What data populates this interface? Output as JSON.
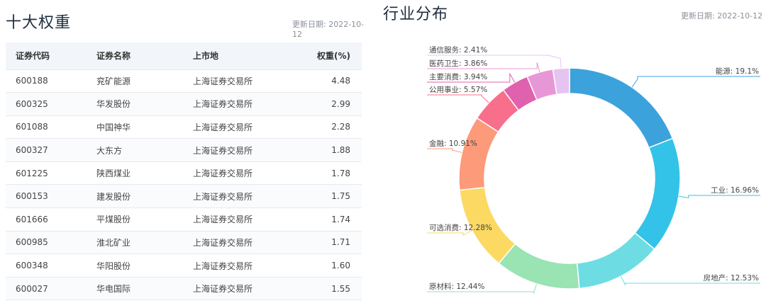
{
  "top10": {
    "title": "十大权重",
    "update_text": "更新日期: 2022-10-12",
    "columns": [
      "证券代码",
      "证券名称",
      "上市地",
      "权重(%)"
    ],
    "rows": [
      [
        "600188",
        "兖矿能源",
        "上海证券交易所",
        "4.48"
      ],
      [
        "600325",
        "华发股份",
        "上海证券交易所",
        "2.99"
      ],
      [
        "601088",
        "中国神华",
        "上海证券交易所",
        "2.28"
      ],
      [
        "600327",
        "大东方",
        "上海证券交易所",
        "1.88"
      ],
      [
        "601225",
        "陕西煤业",
        "上海证券交易所",
        "1.78"
      ],
      [
        "600153",
        "建发股份",
        "上海证券交易所",
        "1.75"
      ],
      [
        "601666",
        "平煤股份",
        "上海证券交易所",
        "1.74"
      ],
      [
        "600985",
        "淮北矿业",
        "上海证券交易所",
        "1.71"
      ],
      [
        "600348",
        "华阳股份",
        "上海证券交易所",
        "1.60"
      ],
      [
        "600027",
        "华电国际",
        "上海证券交易所",
        "1.55"
      ]
    ]
  },
  "industry": {
    "title": "行业分布",
    "update_text": "更新日期: 2022-10-12"
  },
  "chart_data": {
    "type": "pie",
    "title": "行业分布",
    "slices": [
      {
        "name": "能源",
        "value": 19.1,
        "label": "能源: 19.1%",
        "color": "#3ca2dc"
      },
      {
        "name": "工业",
        "value": 16.96,
        "label": "工业: 16.96%",
        "color": "#33c3e8"
      },
      {
        "name": "房地产",
        "value": 12.53,
        "label": "房地产: 12.53%",
        "color": "#6ddde3"
      },
      {
        "name": "原材料",
        "value": 12.44,
        "label": "原材料: 12.44%",
        "color": "#9ae3b3"
      },
      {
        "name": "可选消费",
        "value": 12.28,
        "label": "可选消费: 12.28%",
        "color": "#fbd962"
      },
      {
        "name": "金融",
        "value": 10.91,
        "label": "金融: 10.91%",
        "color": "#fc9a7a"
      },
      {
        "name": "公用事业",
        "value": 5.57,
        "label": "公用事业: 5.57%",
        "color": "#f86f8c"
      },
      {
        "name": "主要消费",
        "value": 3.94,
        "label": "主要消费: 3.94%",
        "color": "#e062ae"
      },
      {
        "name": "医药卫生",
        "value": 3.86,
        "label": "医药卫生: 3.86%",
        "color": "#e897d6"
      },
      {
        "name": "通信服务",
        "value": 2.41,
        "label": "通信服务: 2.41%",
        "color": "#e6c4f2"
      }
    ]
  }
}
